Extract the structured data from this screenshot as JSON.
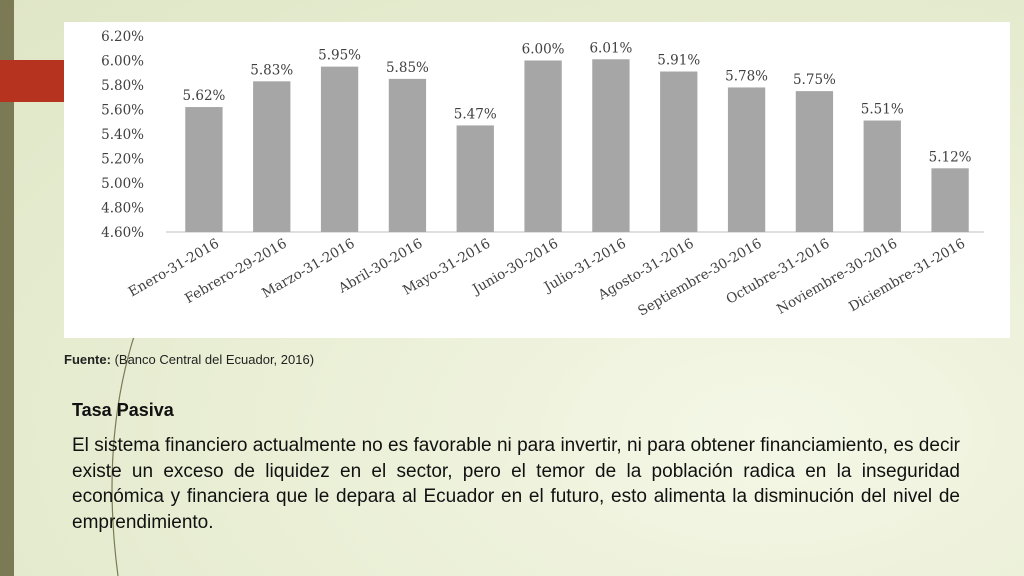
{
  "chart_data": {
    "type": "bar",
    "categories": [
      "Enero-31-2016",
      "Febrero-29-2016",
      "Marzo-31-2016",
      "Abril-30-2016",
      "Mayo-31-2016",
      "Junio-30-2016",
      "Julio-31-2016",
      "Agosto-31-2016",
      "Septiembre-30-2016",
      "Octubre-31-2016",
      "Noviembre-30-2016",
      "Diciembre-31-2016"
    ],
    "values": [
      5.62,
      5.83,
      5.95,
      5.85,
      5.47,
      6.0,
      6.01,
      5.91,
      5.78,
      5.75,
      5.51,
      5.12
    ],
    "data_labels": [
      "5.62%",
      "5.83%",
      "5.95%",
      "5.85%",
      "5.47%",
      "6.00%",
      "6.01%",
      "5.91%",
      "5.78%",
      "5.75%",
      "5.51%",
      "5.12%"
    ],
    "yticks": [
      4.6,
      4.8,
      5.0,
      5.2,
      5.4,
      5.6,
      5.8,
      6.0,
      6.2
    ],
    "ytick_labels": [
      "4.60%",
      "4.80%",
      "5.00%",
      "5.20%",
      "5.40%",
      "5.60%",
      "5.80%",
      "6.00%",
      "6.20%"
    ],
    "ylim": [
      4.6,
      6.2
    ],
    "title": "",
    "xlabel": "",
    "ylabel": "",
    "grid": false,
    "bar_color": "#a6a6a6"
  },
  "source": {
    "label": "Fuente:",
    "text": "(Banco Central del Ecuador, 2016)"
  },
  "content": {
    "heading": "Tasa Pasiva",
    "paragraph": "El sistema financiero actualmente no es favorable ni para invertir, ni para obtener financiamiento, es decir existe un exceso de liquidez en el sector, pero el temor de la población radica en la inseguridad económica y financiera que le depara al Ecuador en el futuro, esto alimenta la disminución del nivel de emprendimiento."
  },
  "theme": {
    "accent": "#b5331f",
    "sidebar": "#7b7a55"
  }
}
